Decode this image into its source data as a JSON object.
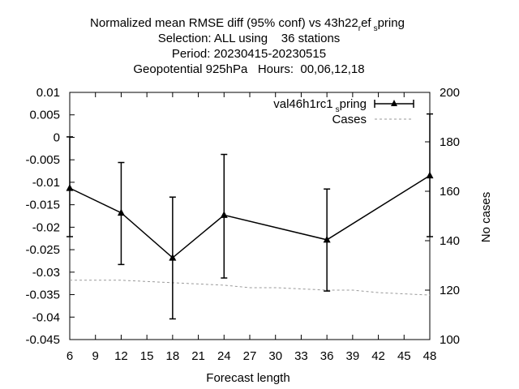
{
  "chart_data": {
    "type": "line",
    "title_lines": [
      "Normalized mean RMSE diff (95% conf) vs 43h22",
      "Selection: ALL using    36 stations",
      "Period: 20230415-20230515",
      "Geopotential 925hPa   Hours:  00,06,12,18"
    ],
    "title_subscripts": {
      "line1_part1": "r",
      "line1_part2": "ef",
      "line1_part3": "s",
      "line1_part4": "pring"
    },
    "xlabel": "Forecast length",
    "ylabel_right": "No cases",
    "xlim": [
      6,
      48
    ],
    "x_ticks": [
      "6",
      "9",
      "12",
      "15",
      "18",
      "21",
      "24",
      "27",
      "30",
      "33",
      "36",
      "39",
      "42",
      "45",
      "48"
    ],
    "ylim": [
      -0.045,
      0.01
    ],
    "y_ticks": [
      "0.01",
      "0.005",
      "0",
      "-0.005",
      "-0.01",
      "-0.015",
      "-0.02",
      "-0.025",
      "-0.03",
      "-0.035",
      "-0.04",
      "-0.045"
    ],
    "y2lim": [
      100,
      200
    ],
    "y2_ticks": [
      "200",
      "180",
      "160",
      "140",
      "120",
      "100"
    ],
    "grid": false,
    "legend_position": "top-right",
    "series": [
      {
        "name": "val46h1rc1",
        "name_sub": "s",
        "name_tail": "pring",
        "color": "#000000",
        "x": [
          6,
          12,
          18,
          24,
          36,
          48
        ],
        "y": [
          -0.0113,
          -0.0168,
          -0.0268,
          -0.0173,
          -0.0228,
          -0.0085
        ],
        "err_low": [
          -0.0221,
          -0.0283,
          -0.0404,
          -0.0313,
          -0.0342,
          -0.0221
        ],
        "err_high": [
          0.0001,
          -0.0056,
          -0.0133,
          -0.0038,
          -0.0115,
          0.0052
        ]
      },
      {
        "name": "Cases",
        "color": "#999999",
        "axis": "right",
        "x": [
          6,
          12,
          18,
          24,
          27,
          30,
          36,
          39,
          42,
          48
        ],
        "y": [
          124,
          124,
          123,
          122,
          121,
          121,
          120,
          120,
          119,
          118
        ]
      }
    ]
  }
}
